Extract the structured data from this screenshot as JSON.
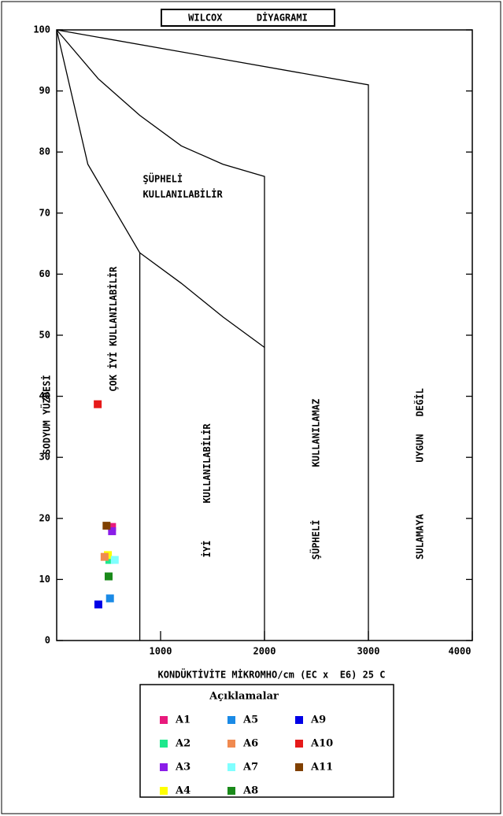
{
  "chart_data": {
    "type": "scatter",
    "title": "WILCOX      DİYAGRAMI",
    "xlabel": "KONDÜKTİVİTE MİKROMHO/cm (EC x  E6) 25 C",
    "ylabel": "SODYUM YÜZDESİ",
    "xlim": [
      0,
      4000
    ],
    "xticks": [
      1000,
      2000,
      3000,
      4000
    ],
    "ylim": [
      0,
      100
    ],
    "yticks": [
      0,
      10,
      20,
      30,
      40,
      50,
      60,
      70,
      80,
      90,
      100
    ],
    "legend_title": "Açıklamalar",
    "boundaries": [
      {
        "x": [
          0,
          3000,
          3000
        ],
        "y": [
          100,
          91,
          0
        ]
      },
      {
        "x": [
          0,
          400,
          800,
          1200,
          1600,
          2000,
          2000
        ],
        "y": [
          100,
          92,
          86,
          81,
          78,
          76,
          0
        ]
      },
      {
        "x": [
          0,
          300,
          800,
          800
        ],
        "y": [
          100,
          78,
          63.5,
          0
        ]
      },
      {
        "x": [
          800,
          1200,
          1600,
          2000
        ],
        "y": [
          63.5,
          58.5,
          53,
          48
        ]
      }
    ],
    "annotations": [
      "ŞÜPHELİ",
      "KULLANILABİLİR",
      "ÇOK İYİ KULLANILABİLİR",
      "KULLANILABİLİR",
      "İYİ",
      "KULLANILAMAZ",
      "ŞÜPHELİ",
      "DEĞİL",
      "UYGUN",
      "SULAMAYA"
    ],
    "series": [
      {
        "name": "A1",
        "color": "#e8197c",
        "x": [
          533
        ],
        "values": [
          18.6
        ]
      },
      {
        "name": "A2",
        "color": "#1de88c",
        "x": [
          507
        ],
        "values": [
          13.2
        ]
      },
      {
        "name": "A3",
        "color": "#8a1de8",
        "x": [
          533
        ],
        "values": [
          17.9
        ]
      },
      {
        "name": "A4",
        "color": "#ffff00",
        "x": [
          493
        ],
        "values": [
          14.0
        ]
      },
      {
        "name": "A5",
        "color": "#1a8ae6",
        "x": [
          513
        ],
        "values": [
          6.9
        ]
      },
      {
        "name": "A6",
        "color": "#f08a50",
        "x": [
          461
        ],
        "values": [
          13.7
        ]
      },
      {
        "name": "A7",
        "color": "#80ffff",
        "x": [
          559
        ],
        "values": [
          13.2
        ]
      },
      {
        "name": "A8",
        "color": "#1a8a1a",
        "x": [
          500
        ],
        "values": [
          10.5
        ]
      },
      {
        "name": "A9",
        "color": "#0000e6",
        "x": [
          401
        ],
        "values": [
          5.9
        ]
      },
      {
        "name": "A10",
        "color": "#e61a1a",
        "x": [
          395
        ],
        "values": [
          38.7
        ]
      },
      {
        "name": "A11",
        "color": "#804000",
        "x": [
          480
        ],
        "values": [
          18.8
        ]
      }
    ]
  }
}
